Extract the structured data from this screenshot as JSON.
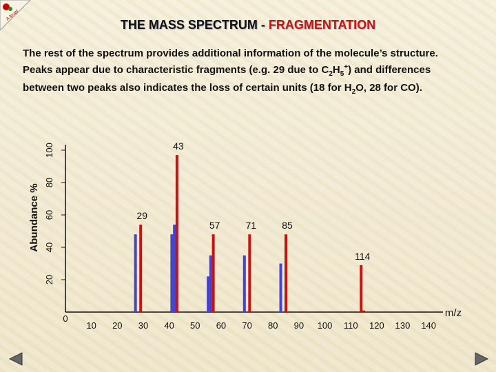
{
  "header": {
    "title_main": "THE MASS SPECTRUM - ",
    "title_accent": "FRAGMENTATION"
  },
  "intro": {
    "line1": "The rest of the spectrum provides additional information of the molecule’s structure.",
    "line2_a": "Peaks appear due to characteristic fragments (e.g. 29 due to C",
    "line2_sub1": "2",
    "line2_b": "H",
    "line2_sub2": "5",
    "line2_sup": "+",
    "line2_c": ") and differences",
    "line3_a": "between two peaks also indicates the loss of certain units (18 for H",
    "line3_sub": "2",
    "line3_b": "O, 28 for CO)."
  },
  "logo_text": "A level",
  "colors": {
    "red_peak": "#cc1111",
    "blue_peak": "#4444cc",
    "accent": "#cc1111"
  },
  "nav": {
    "prev_icon": "triangle-left-icon",
    "next_icon": "triangle-right-icon"
  },
  "chart_data": {
    "type": "bar",
    "title": "",
    "xlabel": "m/z",
    "ylabel": "Abundance %",
    "xlim": [
      0,
      145
    ],
    "ylim": [
      0,
      100
    ],
    "x_ticks": [
      0,
      10,
      20,
      30,
      40,
      50,
      60,
      70,
      80,
      90,
      100,
      110,
      120,
      130,
      140
    ],
    "y_ticks": [
      20,
      40,
      60,
      80,
      100
    ],
    "series": [
      {
        "color": "#cc1111",
        "points": [
          {
            "x": 29,
            "y": 54
          },
          {
            "x": 43,
            "y": 97
          },
          {
            "x": 57,
            "y": 48
          },
          {
            "x": 71,
            "y": 48
          },
          {
            "x": 85,
            "y": 48
          },
          {
            "x": 114,
            "y": 29
          },
          {
            "x": 115,
            "y": 1
          }
        ]
      },
      {
        "color": "#4444cc",
        "points": [
          {
            "x": 27,
            "y": 48
          },
          {
            "x": 41,
            "y": 48
          },
          {
            "x": 42,
            "y": 54
          },
          {
            "x": 55,
            "y": 22
          },
          {
            "x": 56,
            "y": 35
          },
          {
            "x": 69,
            "y": 35
          },
          {
            "x": 83,
            "y": 30
          }
        ]
      }
    ],
    "peak_labels": [
      {
        "x": 43,
        "text": "43"
      },
      {
        "x": 29,
        "text": "29"
      },
      {
        "x": 57,
        "text": "57"
      },
      {
        "x": 71,
        "text": "71"
      },
      {
        "x": 85,
        "text": "85"
      },
      {
        "x": 114,
        "text": "114"
      }
    ]
  }
}
